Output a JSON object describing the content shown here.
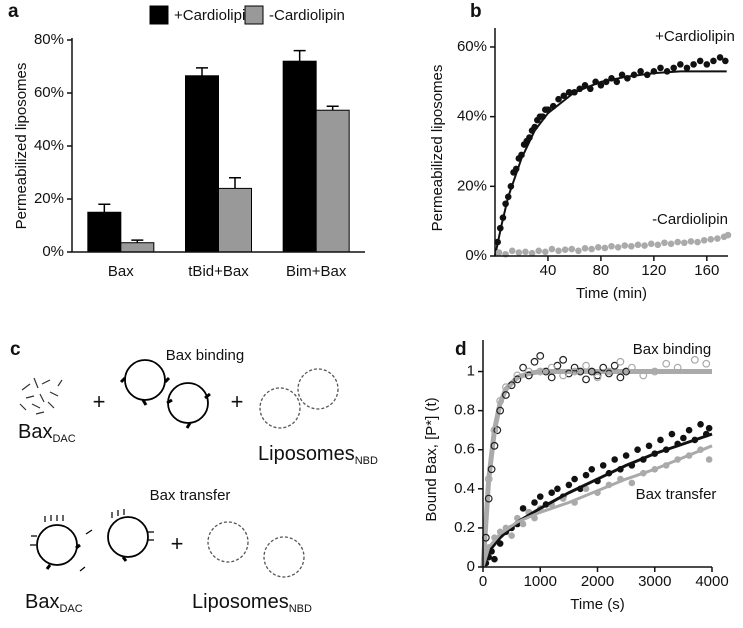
{
  "chart_data": [
    {
      "type": "bar",
      "panel": "a",
      "y_label": "Permeabilized liposomes",
      "categories": [
        "Bax",
        "tBid+Bax",
        "Bim+Bax"
      ],
      "series": [
        {
          "name": "+Cardiolipin",
          "color": "#000000",
          "values": [
            15,
            66.5,
            72
          ],
          "errors": [
            3,
            3,
            4
          ]
        },
        {
          "name": "-Cardiolipin",
          "color": "#999999",
          "values": [
            3.5,
            24,
            53.5
          ],
          "errors": [
            1,
            4,
            1.5
          ]
        }
      ],
      "ylim": [
        0,
        80
      ],
      "yticks": [
        {
          "value": 0,
          "label": "0%"
        },
        {
          "value": 20,
          "label": "20%"
        },
        {
          "value": 40,
          "label": "40%"
        },
        {
          "value": 60,
          "label": "60%"
        },
        {
          "value": 80,
          "label": "80%"
        }
      ]
    },
    {
      "type": "scatter",
      "panel": "b",
      "x_label": "Time (min)",
      "y_label": "Permeabilized liposomes",
      "annotations": [
        "+Cardiolipin",
        "-Cardiolipin"
      ],
      "xlim": [
        0,
        176
      ],
      "xticks": [
        40,
        80,
        120,
        160
      ],
      "ylim": [
        0,
        62
      ],
      "yticks": [
        {
          "value": 0,
          "label": "0%"
        },
        {
          "value": 20,
          "label": "20%"
        },
        {
          "value": 40,
          "label": "40%"
        },
        {
          "value": 60,
          "label": "60%"
        }
      ],
      "series": [
        {
          "color": "#111111",
          "mode": "markers",
          "fill": true,
          "x": [
            2,
            4,
            6,
            8,
            10,
            12,
            14,
            16,
            18,
            20,
            22,
            24,
            26,
            28,
            30,
            32,
            34,
            36,
            38,
            40,
            44,
            48,
            52,
            56,
            60,
            64,
            68,
            72,
            76,
            80,
            84,
            88,
            92,
            96,
            100,
            105,
            110,
            115,
            120,
            125,
            130,
            135,
            140,
            145,
            150,
            155,
            160,
            165,
            170,
            174
          ],
          "values": [
            4,
            8,
            11,
            15,
            17,
            20,
            24,
            25,
            28,
            29,
            32,
            33,
            34,
            36,
            37,
            39,
            40,
            40,
            42,
            42,
            43,
            45,
            46,
            47,
            47,
            48,
            49,
            48,
            50,
            49,
            50,
            51,
            50,
            52,
            51,
            52,
            53,
            52,
            53,
            54,
            53,
            54,
            55,
            54,
            55,
            56,
            55,
            56,
            57,
            56
          ]
        },
        {
          "color": "#111111",
          "mode": "line",
          "x": [
            0,
            5,
            10,
            20,
            30,
            40,
            60,
            80,
            100,
            120,
            140,
            160,
            175
          ],
          "values": [
            0,
            9,
            17,
            28,
            36,
            41,
            47,
            50,
            51.5,
            52.5,
            53,
            53,
            53
          ]
        },
        {
          "color": "#aaaaaa",
          "mode": "markers",
          "fill": true,
          "x": [
            3,
            8,
            13,
            18,
            23,
            28,
            33,
            38,
            43,
            48,
            53,
            58,
            63,
            68,
            73,
            78,
            83,
            88,
            93,
            98,
            103,
            108,
            113,
            118,
            123,
            128,
            133,
            138,
            143,
            148,
            153,
            158,
            163,
            168,
            173,
            176
          ],
          "values": [
            1,
            0.5,
            1.5,
            1,
            1.2,
            0.8,
            1.5,
            1.2,
            2,
            1.5,
            1.8,
            2,
            1.5,
            2.2,
            2,
            2.5,
            2.3,
            2.8,
            2.5,
            3,
            2.8,
            3.2,
            3,
            3.5,
            3.2,
            3.8,
            3.5,
            4,
            3.8,
            4.2,
            4,
            4.5,
            4.8,
            5,
            5.5,
            6
          ]
        }
      ]
    },
    {
      "type": "scatter",
      "panel": "d",
      "x_label": "Time (s)",
      "y_label": "Bound Bax, [P*] (t)",
      "annotations": [
        "Bax binding",
        "Bax transfer"
      ],
      "xlim": [
        0,
        4000
      ],
      "xticks": [
        0,
        1000,
        2000,
        3000,
        4000
      ],
      "ylim": [
        0,
        1.1
      ],
      "yticks": [
        0,
        0.2,
        0.4,
        0.6,
        0.8,
        1
      ],
      "series": [
        {
          "color": "#aaaaaa",
          "mode": "line",
          "width": 5,
          "x": [
            0,
            100,
            200,
            300,
            400,
            600,
            800,
            1000,
            4000
          ],
          "values": [
            0,
            0.45,
            0.7,
            0.84,
            0.91,
            0.97,
            0.99,
            1,
            1
          ]
        },
        {
          "color": "#222222",
          "mode": "markers",
          "fill": false,
          "x": [
            50,
            100,
            150,
            200,
            250,
            300,
            400,
            500,
            600,
            700,
            800,
            900,
            1000,
            1100,
            1200,
            1300,
            1400,
            1500,
            1600,
            1700,
            1800,
            1900,
            2000,
            2100,
            2200,
            2300,
            2400,
            2500
          ],
          "values": [
            0.15,
            0.35,
            0.5,
            0.62,
            0.7,
            0.8,
            0.88,
            0.93,
            0.96,
            1.02,
            0.98,
            1.05,
            1.08,
            1,
            0.97,
            1.03,
            1.06,
            0.99,
            1.02,
            1,
            0.96,
            1,
            0.98,
            1.02,
            0.99,
            1.03,
            0.97,
            1
          ]
        },
        {
          "color": "#aaaaaa",
          "mode": "markers",
          "fill": false,
          "x": [
            100,
            200,
            300,
            400,
            600,
            800,
            1000,
            1200,
            1400,
            1600,
            1800,
            2000,
            2200,
            2400,
            2600,
            2800,
            3000,
            3200,
            3400,
            3700,
            3900
          ],
          "values": [
            0.45,
            0.7,
            0.85,
            0.92,
            0.98,
            1,
            1,
            1.02,
            0.98,
            1,
            1.03,
            0.97,
            1,
            1.05,
            1.02,
            0.98,
            1,
            1.04,
            1.02,
            1.06,
            1.04
          ]
        },
        {
          "color": "#111111",
          "mode": "markers",
          "fill": true,
          "x": [
            50,
            100,
            150,
            200,
            300,
            400,
            500,
            600,
            700,
            800,
            900,
            1000,
            1100,
            1200,
            1300,
            1400,
            1500,
            1600,
            1700,
            1800,
            1900,
            2000,
            2100,
            2200,
            2300,
            2400,
            2500,
            2600,
            2700,
            2800,
            2900,
            3000,
            3100,
            3200,
            3300,
            3400,
            3500,
            3600,
            3700,
            3800,
            3900,
            3950
          ],
          "values": [
            0.02,
            0.05,
            0.08,
            0.04,
            0.12,
            0.18,
            0.2,
            0.22,
            0.3,
            0.28,
            0.33,
            0.36,
            0.32,
            0.38,
            0.4,
            0.36,
            0.42,
            0.45,
            0.4,
            0.47,
            0.5,
            0.44,
            0.52,
            0.48,
            0.55,
            0.5,
            0.57,
            0.52,
            0.6,
            0.55,
            0.62,
            0.58,
            0.65,
            0.6,
            0.68,
            0.63,
            0.66,
            0.7,
            0.65,
            0.73,
            0.68,
            0.71
          ]
        },
        {
          "color": "#aaaaaa",
          "mode": "markers",
          "fill": true,
          "x": [
            100,
            200,
            300,
            400,
            500,
            600,
            700,
            800,
            900,
            1000,
            1200,
            1400,
            1600,
            1800,
            2000,
            2200,
            2400,
            2600,
            2800,
            3000,
            3200,
            3400,
            3600,
            3800,
            3950
          ],
          "values": [
            0.1,
            0.15,
            0.18,
            0.2,
            0.16,
            0.25,
            0.22,
            0.28,
            0.25,
            0.3,
            0.32,
            0.35,
            0.33,
            0.4,
            0.38,
            0.42,
            0.45,
            0.43,
            0.48,
            0.5,
            0.52,
            0.55,
            0.57,
            0.6,
            0.55
          ]
        },
        {
          "color": "#111111",
          "mode": "line",
          "width": 3,
          "x": [
            0,
            100,
            300,
            600,
            1000,
            1500,
            2000,
            2500,
            3000,
            3500,
            4000
          ],
          "values": [
            0,
            0.08,
            0.15,
            0.23,
            0.3,
            0.38,
            0.45,
            0.52,
            0.58,
            0.63,
            0.68
          ]
        },
        {
          "color": "#aaaaaa",
          "mode": "line",
          "width": 3,
          "x": [
            0,
            100,
            300,
            600,
            1000,
            1500,
            2000,
            2500,
            3000,
            3500,
            4000
          ],
          "values": [
            0,
            0.1,
            0.17,
            0.23,
            0.28,
            0.33,
            0.39,
            0.45,
            0.5,
            0.56,
            0.62
          ]
        }
      ]
    }
  ],
  "diagram": {
    "panel": "c",
    "binding_title": "Bax binding",
    "transfer_title": "Bax transfer",
    "plus": "+",
    "bax": "Bax",
    "dac": "DAC",
    "liposomes": "Liposomes",
    "nbd": "NBD"
  }
}
